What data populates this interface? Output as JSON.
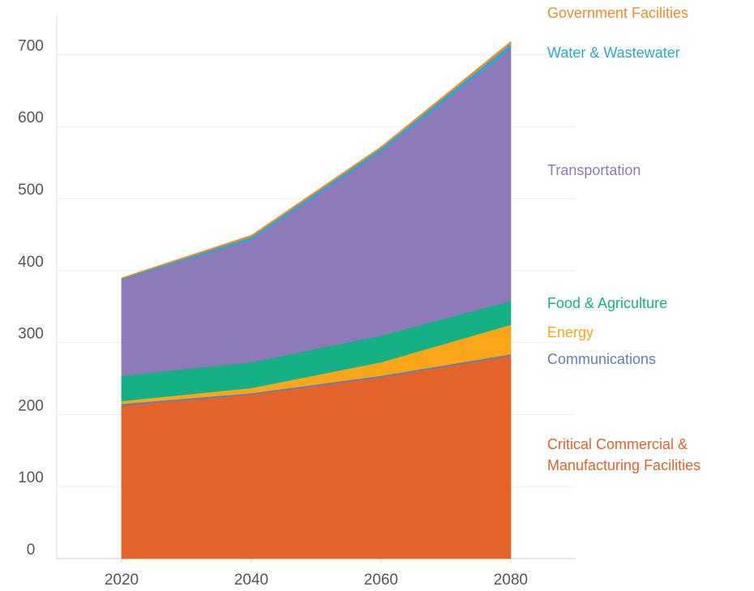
{
  "chart_data": {
    "type": "stacked_area",
    "x": [
      2020,
      2040,
      2060,
      2080
    ],
    "xlim": [
      2010,
      2090
    ],
    "xticks": [
      2020,
      2040,
      2060,
      2080
    ],
    "ylim": [
      0,
      750
    ],
    "yticks": [
      0,
      100,
      200,
      300,
      400,
      500,
      600,
      700
    ],
    "grid": true,
    "series": [
      {
        "name": "Critical Commercial & Manufacturing Facilities",
        "color": "#e4632a",
        "values": [
          213,
          228,
          252,
          282
        ]
      },
      {
        "name": "Communications",
        "color": "#5b7fc0",
        "values": [
          2,
          2,
          2,
          2
        ]
      },
      {
        "name": "Energy",
        "color": "#f9a61a",
        "values": [
          4,
          7,
          19,
          41
        ]
      },
      {
        "name": "Food & Agriculture",
        "color": "#15b085",
        "values": [
          35,
          36,
          37,
          33
        ]
      },
      {
        "name": "Transportation",
        "color": "#8e79b9",
        "values": [
          134,
          170,
          256,
          351
        ]
      },
      {
        "name": "Water & Wastewater",
        "color": "#27a9d8",
        "values": [
          1,
          4,
          4,
          6
        ]
      },
      {
        "name": "Government Facilities",
        "color": "#f08a2c",
        "values": [
          1,
          2,
          2,
          3
        ]
      }
    ]
  }
}
